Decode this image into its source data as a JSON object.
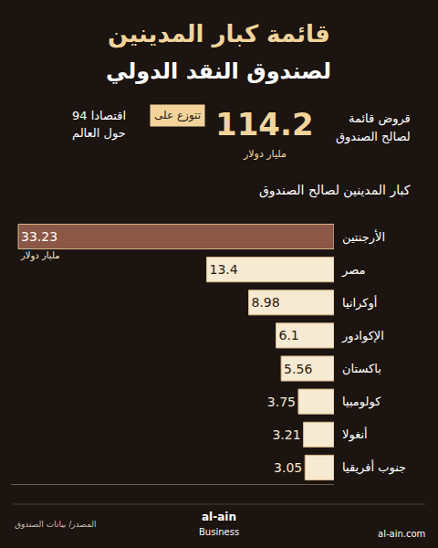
{
  "chart_data": {
    "type": "bar",
    "orientation": "horizontal",
    "title": "قائمة كبار المدينين",
    "subtitle": "لصندوق النقد الدولي",
    "categories": [
      "الأرجنتين",
      "مصر",
      "أوكرانيا",
      "الإكوادور",
      "باكستان",
      "كولومبيا",
      "أنغولا",
      "جنوب أفريقيا"
    ],
    "values": [
      33.23,
      13.4,
      8.98,
      6.1,
      5.56,
      3.75,
      3.21,
      3.05
    ],
    "colors": [
      "#8b5746",
      "#f7ead2",
      "#f7ead2",
      "#f7ead2",
      "#f7ead2",
      "#f7ead2",
      "#f7ead2",
      "#f7ead2"
    ],
    "data_labels": true,
    "tick_labels": "y",
    "grid": false,
    "xlim": [
      0,
      34
    ],
    "annotations": [
      "114.2",
      "قروض قائمة",
      "لصالح الصندوق",
      "مليار دولار",
      "تتوزع على",
      "94 اقتصادا",
      "حول العالم",
      "كبار المدينين لصالح الصندوق",
      "مليار دولار",
      "المصدر/ بيانات الصندوق",
      "al-ain",
      "Business",
      "al-ain.com"
    ]
  }
}
